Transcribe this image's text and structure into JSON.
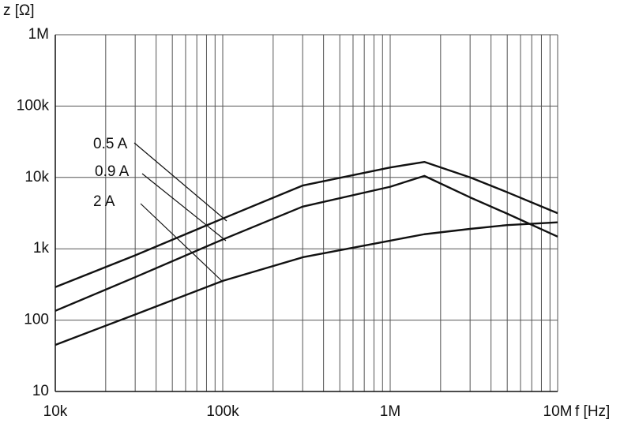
{
  "chart_data": {
    "type": "line",
    "y_label": "z [Ω]",
    "x_label": "f [Hz]",
    "x_scale": "log",
    "y_scale": "log",
    "grid": true,
    "x": [
      10000,
      30000,
      100000,
      300000,
      1000000,
      1600000,
      3000000,
      5000000,
      10000000
    ],
    "series": [
      {
        "name": "0.5 A",
        "color": "#111111",
        "values": [
          290,
          810,
          2650,
          7700,
          13800,
          16500,
          10000,
          6200,
          3150
        ]
      },
      {
        "name": "0.9 A",
        "color": "#111111",
        "values": [
          135,
          400,
          1350,
          3900,
          7400,
          10500,
          5250,
          3100,
          1480
        ]
      },
      {
        "name": "2 A",
        "color": "#111111",
        "values": [
          45,
          120,
          355,
          760,
          1300,
          1600,
          1900,
          2150,
          2350
        ]
      }
    ],
    "xlim": [
      10000,
      10000000
    ],
    "ylim": [
      10,
      1000000
    ],
    "xticks": [
      {
        "value": 10000,
        "label": "10k"
      },
      {
        "value": 100000,
        "label": "100k"
      },
      {
        "value": 1000000,
        "label": "1M"
      },
      {
        "value": 10000000,
        "label": "10M"
      }
    ],
    "xminorticks": [
      20000,
      30000,
      40000,
      50000,
      60000,
      70000,
      80000,
      90000,
      200000,
      300000,
      400000,
      500000,
      600000,
      700000,
      800000,
      900000,
      2000000,
      3000000,
      4000000,
      5000000,
      6000000,
      7000000,
      8000000,
      9000000
    ],
    "yticks": [
      10,
      100,
      {
        "value": 1000,
        "label": "1k"
      },
      {
        "value": 10000,
        "label": "10k"
      },
      {
        "value": 100000,
        "label": "100k"
      },
      {
        "value": 1000000,
        "label": "1M"
      }
    ]
  }
}
